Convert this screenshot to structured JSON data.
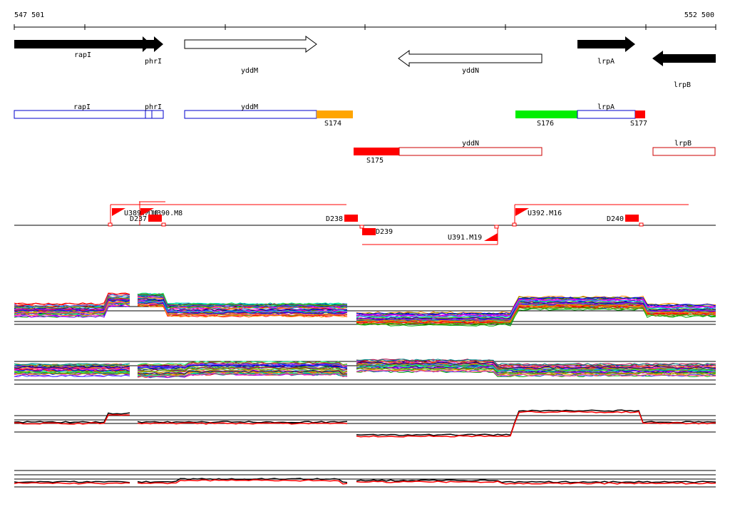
{
  "coords": {
    "start": "547 501",
    "end": "552 500"
  },
  "colors": {
    "forward_filled": "#000000",
    "outline_blue": "#0000cc",
    "outline_red": "#cc0000",
    "s174": "#ffa500",
    "s176": "#00ee00",
    "red": "#ff0000"
  },
  "genes": [
    {
      "name": "rapI",
      "kind": "filled",
      "dir": "fwd"
    },
    {
      "name": "phrI",
      "kind": "filled",
      "dir": "fwd"
    },
    {
      "name": "yddM",
      "kind": "open",
      "dir": "fwd"
    },
    {
      "name": "yddN",
      "kind": "open",
      "dir": "rev"
    },
    {
      "name": "lrpA",
      "kind": "filled",
      "dir": "fwd"
    },
    {
      "name": "lrpB",
      "kind": "filled",
      "dir": "rev"
    }
  ],
  "transcripts": [
    {
      "name": "rapI",
      "strand": "fwd"
    },
    {
      "name": "phrI",
      "strand": "fwd"
    },
    {
      "name": "yddM",
      "strand": "fwd"
    },
    {
      "name": "lrpA",
      "strand": "fwd"
    },
    {
      "name": "yddN",
      "strand": "rev"
    },
    {
      "name": "lrpB",
      "strand": "rev"
    }
  ],
  "segments": [
    {
      "name": "S174"
    },
    {
      "name": "S176"
    },
    {
      "name": "S177"
    },
    {
      "name": "S175"
    }
  ],
  "features": [
    {
      "name": "U389.M10",
      "type": "up"
    },
    {
      "name": "U390.M8",
      "type": "up"
    },
    {
      "name": "D237",
      "type": "down"
    },
    {
      "name": "D238",
      "type": "down"
    },
    {
      "name": "D239",
      "type": "down"
    },
    {
      "name": "U391.M19",
      "type": "up"
    },
    {
      "name": "U392.M16",
      "type": "up"
    },
    {
      "name": "D240",
      "type": "down"
    }
  ],
  "tracks": [
    {
      "id": "expression-multi-1",
      "lines": "many"
    },
    {
      "id": "expression-multi-2",
      "lines": "many"
    },
    {
      "id": "expression-pair-1",
      "lines": "black-red"
    },
    {
      "id": "expression-pair-2",
      "lines": "black-red"
    }
  ]
}
